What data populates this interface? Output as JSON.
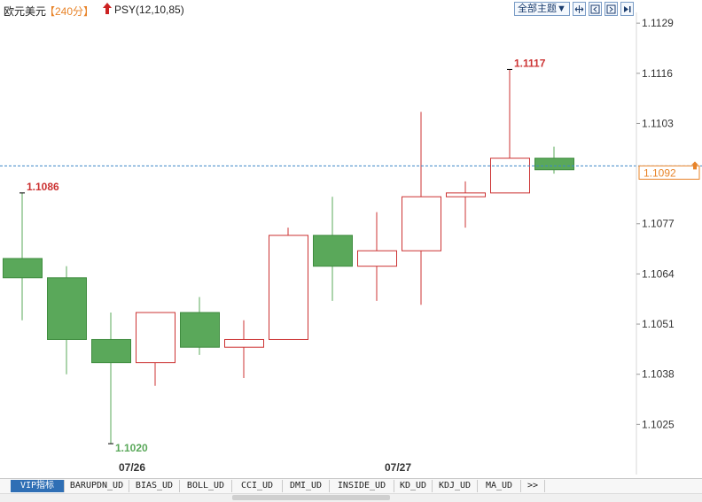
{
  "header": {
    "symbol": "欧元美元",
    "period": "【240分】",
    "indicator": "PSY(12,10,85)",
    "themes_label": "全部主题▼",
    "tool_icons": [
      "zoom-fit-icon",
      "zoom-left-icon",
      "zoom-right-icon",
      "skip-end-icon"
    ]
  },
  "colors": {
    "up": "#cc3333",
    "down": "#5aa85a",
    "down_border": "#3f8c3f",
    "axis_text": "#333333",
    "current_line": "#3d86c6",
    "current_box": "#e8842a",
    "high_label": "#cc3333",
    "low_label": "#5aa85a"
  },
  "chart_data": {
    "type": "candlestick",
    "ylim": [
      1.1012,
      1.1135
    ],
    "y_ticks": [
      "1.1129",
      "1.1116",
      "1.1103",
      "1.1077",
      "1.1064",
      "1.1051",
      "1.1038",
      "1.1025"
    ],
    "x_labels": [
      {
        "label": "07/26",
        "index": 2.5
      },
      {
        "label": "07/27",
        "index": 8.5
      }
    ],
    "candles": [
      {
        "open": 1.1068,
        "high": 1.1085,
        "low": 1.1052,
        "close": 1.1063
      },
      {
        "open": 1.1063,
        "high": 1.1066,
        "low": 1.1038,
        "close": 1.1047
      },
      {
        "open": 1.1047,
        "high": 1.1054,
        "low": 1.102,
        "close": 1.1041
      },
      {
        "open": 1.1041,
        "high": 1.1054,
        "low": 1.1035,
        "close": 1.1054
      },
      {
        "open": 1.1054,
        "high": 1.1058,
        "low": 1.1043,
        "close": 1.1045
      },
      {
        "open": 1.1045,
        "high": 1.1052,
        "low": 1.1037,
        "close": 1.1047
      },
      {
        "open": 1.1047,
        "high": 1.1076,
        "low": 1.1047,
        "close": 1.1074
      },
      {
        "open": 1.1074,
        "high": 1.1084,
        "low": 1.1057,
        "close": 1.1066
      },
      {
        "open": 1.1066,
        "high": 1.108,
        "low": 1.1057,
        "close": 1.107
      },
      {
        "open": 1.107,
        "high": 1.1106,
        "low": 1.1056,
        "close": 1.1084
      },
      {
        "open": 1.1084,
        "high": 1.1088,
        "low": 1.1076,
        "close": 1.1085
      },
      {
        "open": 1.1085,
        "high": 1.1117,
        "low": 1.1085,
        "close": 1.1094
      },
      {
        "open": 1.1094,
        "high": 1.1097,
        "low": 1.109,
        "close": 1.1091
      }
    ],
    "high_marker": {
      "label": "1.1117",
      "index": 11
    },
    "low_marker": {
      "label": "1.1020",
      "index": 2
    },
    "left_marker": {
      "label": "1.1086",
      "index": 0
    },
    "current_price": 1.1092,
    "current_label": "1.1092"
  },
  "tabs": [
    {
      "label": "VIP指标",
      "active": true
    },
    {
      "label": "BARUPDN_UD",
      "active": false
    },
    {
      "label": "BIAS_UD",
      "active": false
    },
    {
      "label": "BOLL_UD",
      "active": false
    },
    {
      "label": "CCI_UD",
      "active": false
    },
    {
      "label": "DMI_UD",
      "active": false
    },
    {
      "label": "INSIDE_UD",
      "active": false
    },
    {
      "label": "KD_UD",
      "active": false
    },
    {
      "label": "KDJ_UD",
      "active": false
    },
    {
      "label": "MA_UD",
      "active": false
    },
    {
      "label": ">>",
      "active": false
    }
  ]
}
